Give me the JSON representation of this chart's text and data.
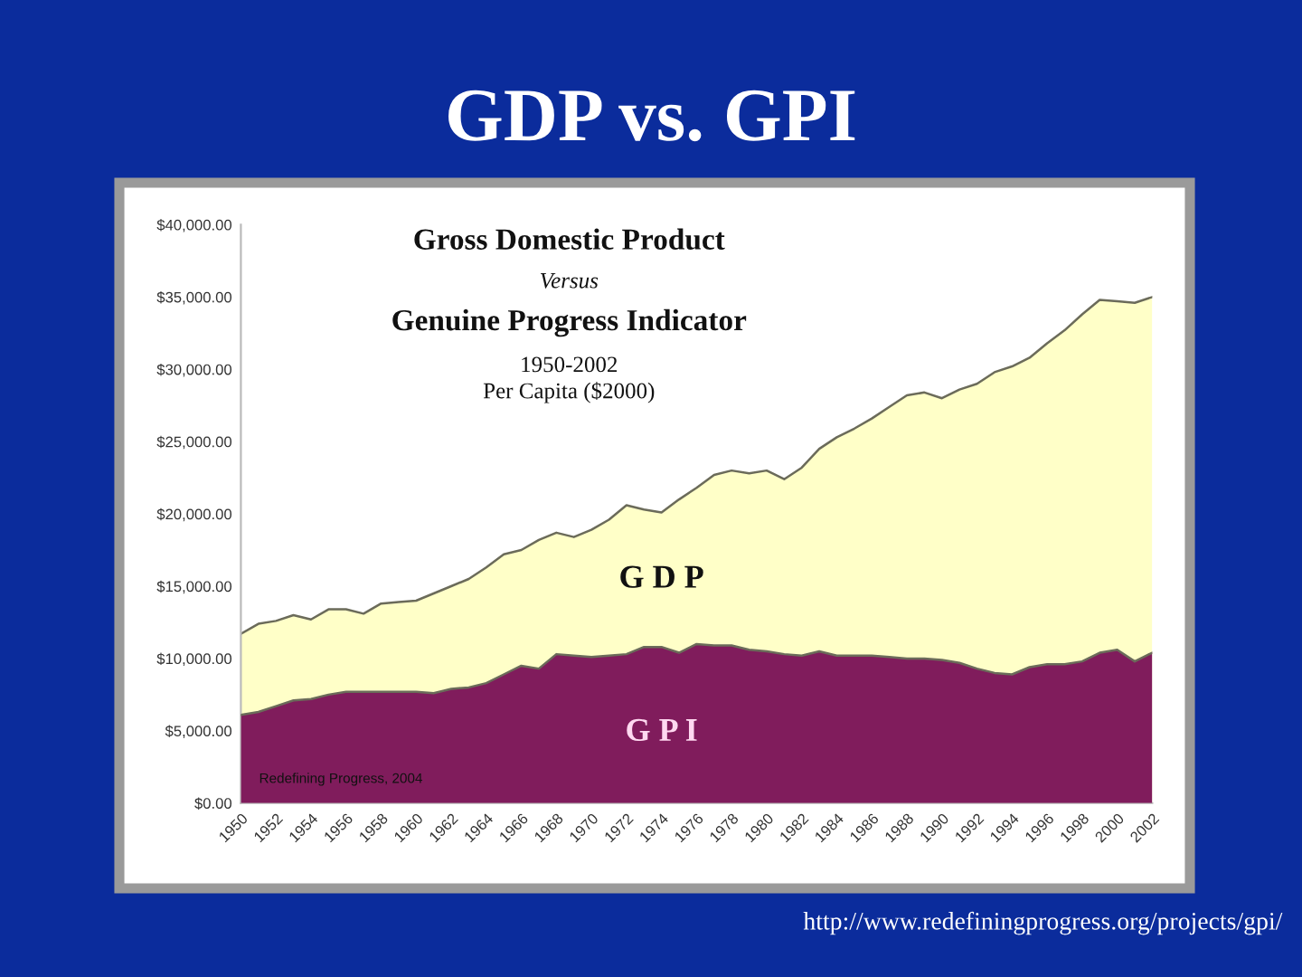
{
  "chart_data": {
    "type": "area",
    "title": "GDP vs. GPI",
    "categories": [
      "1950",
      null,
      "1952",
      null,
      "1954",
      null,
      "1956",
      null,
      "1958",
      null,
      "1960",
      null,
      "1962",
      null,
      "1964",
      null,
      "1966",
      null,
      "1968",
      null,
      "1970",
      null,
      "1972",
      null,
      "1974",
      null,
      "1976",
      null,
      "1978",
      null,
      "1980",
      null,
      "1982",
      null,
      "1984",
      null,
      "1986",
      null,
      "1988",
      null,
      "1990",
      null,
      "1992",
      null,
      "1994",
      null,
      "1996",
      null,
      "1998",
      null,
      "2000",
      null,
      "2002"
    ],
    "series": [
      {
        "name": "G D P",
        "color": "#ffffc8",
        "values": [
          11700,
          12400,
          12600,
          13000,
          12700,
          13400,
          13400,
          13100,
          13800,
          13900,
          14000,
          14500,
          15000,
          15500,
          16300,
          17200,
          17500,
          18200,
          18700,
          18400,
          18900,
          19600,
          20600,
          20300,
          20100,
          21000,
          21800,
          22700,
          23000,
          22800,
          23000,
          22400,
          23200,
          24500,
          25300,
          25900,
          26600,
          27400,
          28200,
          28400,
          28000,
          28600,
          29000,
          29800,
          30200,
          30800,
          31800,
          32700,
          33800,
          34800,
          34700,
          34600,
          35000
        ]
      },
      {
        "name": "G P I",
        "color": "#801c5c",
        "values": [
          6100,
          6300,
          6700,
          7100,
          7200,
          7500,
          7700,
          7700,
          7700,
          7700,
          7700,
          7600,
          7900,
          8000,
          8300,
          8900,
          9500,
          9300,
          10300,
          10200,
          10100,
          10200,
          10300,
          10800,
          10800,
          10400,
          11000,
          10900,
          10900,
          10600,
          10500,
          10300,
          10200,
          10500,
          10200,
          10200,
          10200,
          10100,
          10000,
          10000,
          9900,
          9700,
          9300,
          9000,
          8900,
          9400,
          9600,
          9600,
          9800,
          10400,
          10600,
          9800,
          10400
        ]
      }
    ],
    "ylim": [
      0,
      40000
    ],
    "yticks": [
      {
        "value": 0,
        "label": "$0.00"
      },
      {
        "value": 5000,
        "label": "$5,000.00"
      },
      {
        "value": 10000,
        "label": "$10,000.00"
      },
      {
        "value": 15000,
        "label": "$15,000.00"
      },
      {
        "value": 20000,
        "label": "$20,000.00"
      },
      {
        "value": 25000,
        "label": "$25,000.00"
      },
      {
        "value": 30000,
        "label": "$30,000.00"
      },
      {
        "value": 35000,
        "label": "$35,000.00"
      },
      {
        "value": 40000,
        "label": "$40,000.00"
      }
    ],
    "annotations": [
      "Gross Domestic Product",
      "Versus",
      "Genuine Progress Indicator",
      "1950-2002",
      "Per Capita ($2000)",
      "Redefining Progress, 2004",
      "http://www.redefiningprogress.org/projects/gpi/"
    ]
  }
}
